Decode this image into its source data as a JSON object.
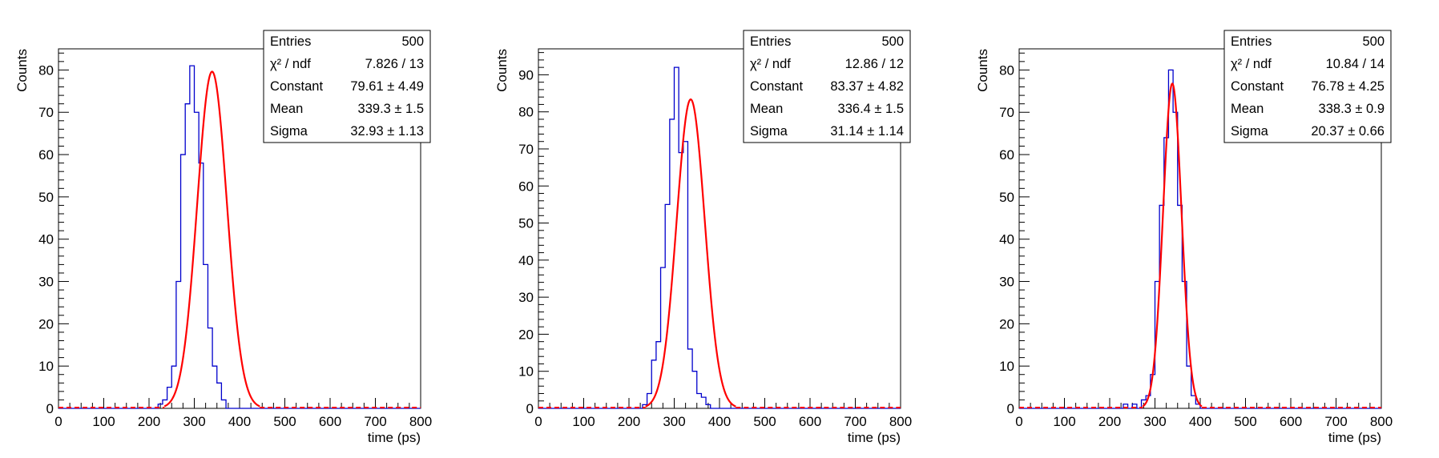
{
  "chart_data": [
    {
      "type": "histogram",
      "xlabel": "time (ps)",
      "ylabel": "Counts",
      "xlim": [
        0,
        800
      ],
      "ylim": [
        0,
        85
      ],
      "bin_width": 10,
      "x_ticks": [
        0,
        100,
        200,
        300,
        400,
        500,
        600,
        700,
        800
      ],
      "y_ticks": [
        0,
        10,
        20,
        30,
        40,
        50,
        60,
        70,
        80
      ],
      "histogram_color": "#0000cc",
      "fit_color": "#ff0000",
      "histogram": {
        "bin_edges_start": 220,
        "counts": [
          1,
          2,
          5,
          10,
          30,
          60,
          72,
          81,
          70,
          58,
          34,
          19,
          10,
          6,
          2
        ]
      },
      "fit": {
        "constant": 79.61,
        "mean": 339.3,
        "sigma": 32.93
      },
      "stats": [
        {
          "label": "Entries",
          "value": "500"
        },
        {
          "label": "χ² / ndf",
          "value": "7.826 / 13"
        },
        {
          "label": "Constant",
          "value": "79.61 ± 4.49"
        },
        {
          "label": "Mean",
          "value": "339.3 ± 1.5"
        },
        {
          "label": "Sigma",
          "value": "32.93 ± 1.13"
        }
      ]
    },
    {
      "type": "histogram",
      "xlabel": "time (ps)",
      "ylabel": "Counts",
      "xlim": [
        0,
        800
      ],
      "ylim": [
        0,
        97
      ],
      "bin_width": 10,
      "x_ticks": [
        0,
        100,
        200,
        300,
        400,
        500,
        600,
        700,
        800
      ],
      "y_ticks": [
        0,
        10,
        20,
        30,
        40,
        50,
        60,
        70,
        80,
        90
      ],
      "histogram_color": "#0000cc",
      "fit_color": "#ff0000",
      "histogram": {
        "bin_edges_start": 230,
        "counts": [
          1,
          4,
          13,
          18,
          38,
          55,
          78,
          92,
          69,
          72,
          16,
          10,
          4,
          3,
          1
        ]
      },
      "fit": {
        "constant": 83.37,
        "mean": 336.4,
        "sigma": 31.14
      },
      "stats": [
        {
          "label": "Entries",
          "value": "500"
        },
        {
          "label": "χ² / ndf",
          "value": "12.86 / 12"
        },
        {
          "label": "Constant",
          "value": "83.37 ± 4.82"
        },
        {
          "label": "Mean",
          "value": "336.4 ± 1.5"
        },
        {
          "label": "Sigma",
          "value": "31.14 ± 1.14"
        }
      ]
    },
    {
      "type": "histogram",
      "xlabel": "time (ps)",
      "ylabel": "Counts",
      "xlim": [
        0,
        800
      ],
      "ylim": [
        0,
        85
      ],
      "bin_width": 10,
      "x_ticks": [
        0,
        100,
        200,
        300,
        400,
        500,
        600,
        700,
        800
      ],
      "y_ticks": [
        0,
        10,
        20,
        30,
        40,
        50,
        60,
        70,
        80
      ],
      "histogram_color": "#0000cc",
      "fit_color": "#ff0000",
      "histogram": {
        "bin_edges_start": 230,
        "counts": [
          1,
          0,
          1,
          0,
          2,
          3,
          8,
          30,
          48,
          64,
          80,
          70,
          48,
          30,
          10,
          3,
          1
        ]
      },
      "fit": {
        "constant": 76.78,
        "mean": 338.3,
        "sigma": 20.37
      },
      "stats": [
        {
          "label": "Entries",
          "value": "500"
        },
        {
          "label": "χ² / ndf",
          "value": "10.84 / 14"
        },
        {
          "label": "Constant",
          "value": "76.78 ± 4.25"
        },
        {
          "label": "Mean",
          "value": "338.3 ± 0.9"
        },
        {
          "label": "Sigma",
          "value": "20.37 ± 0.66"
        }
      ]
    }
  ]
}
